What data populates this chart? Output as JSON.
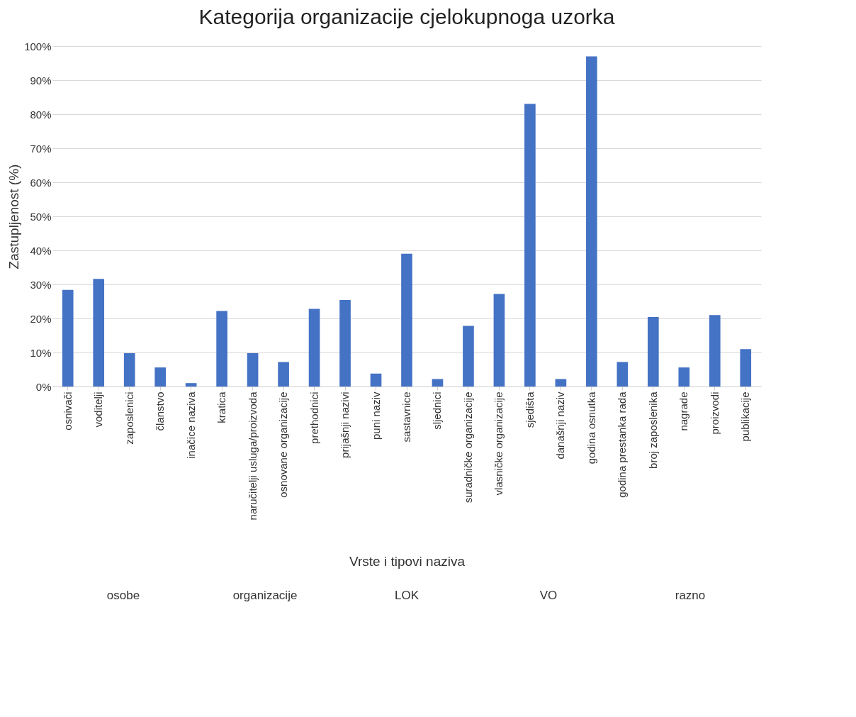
{
  "chart_data": {
    "type": "bar",
    "title": "Kategorija organizacije cjelokupnoga uzorka",
    "xlabel": "Vrste i tipovi naziva",
    "ylabel": "Zastupljenost (%)",
    "categories": [
      "osnivači",
      "voditelji",
      "zaposlenici",
      "članstvo",
      "inačice naziva",
      "kratica",
      "naručitelji usluga/proizvoda",
      "osnovane organizacije",
      "prethodnici",
      "prijašnji nazivi",
      "puni naziv",
      "sastavnice",
      "sljednici",
      "suradničke organizacije",
      "vlasničke organizacije",
      "sjedišta",
      "današnji naziv",
      "godina osnutka",
      "godina prestanka rada",
      "broj zaposlenika",
      "nagrade",
      "proizvodi",
      "publikacije"
    ],
    "values": [
      28.4,
      31.6,
      9.8,
      5.6,
      1.0,
      22.2,
      9.8,
      7.2,
      22.8,
      25.4,
      3.8,
      39,
      2.2,
      17.8,
      27.2,
      83,
      2.2,
      97,
      7.2,
      20.4,
      5.6,
      21,
      11
    ],
    "color": "#4472c4",
    "ylim": [
      0,
      100
    ],
    "yticks": [
      {
        "value": 0,
        "label": "0%"
      },
      {
        "value": 10,
        "label": "10%"
      },
      {
        "value": 20,
        "label": "20%"
      },
      {
        "value": 30,
        "label": "30%"
      },
      {
        "value": 40,
        "label": "40%"
      },
      {
        "value": 50,
        "label": "50%"
      },
      {
        "value": 60,
        "label": "60%"
      },
      {
        "value": 70,
        "label": "70%"
      },
      {
        "value": 80,
        "label": "80%"
      },
      {
        "value": 90,
        "label": "90%"
      },
      {
        "value": 100,
        "label": "100%"
      }
    ],
    "grid": "y",
    "annotations": [
      "osobe",
      "organizacije",
      "LOK",
      "VO",
      "razno"
    ]
  }
}
